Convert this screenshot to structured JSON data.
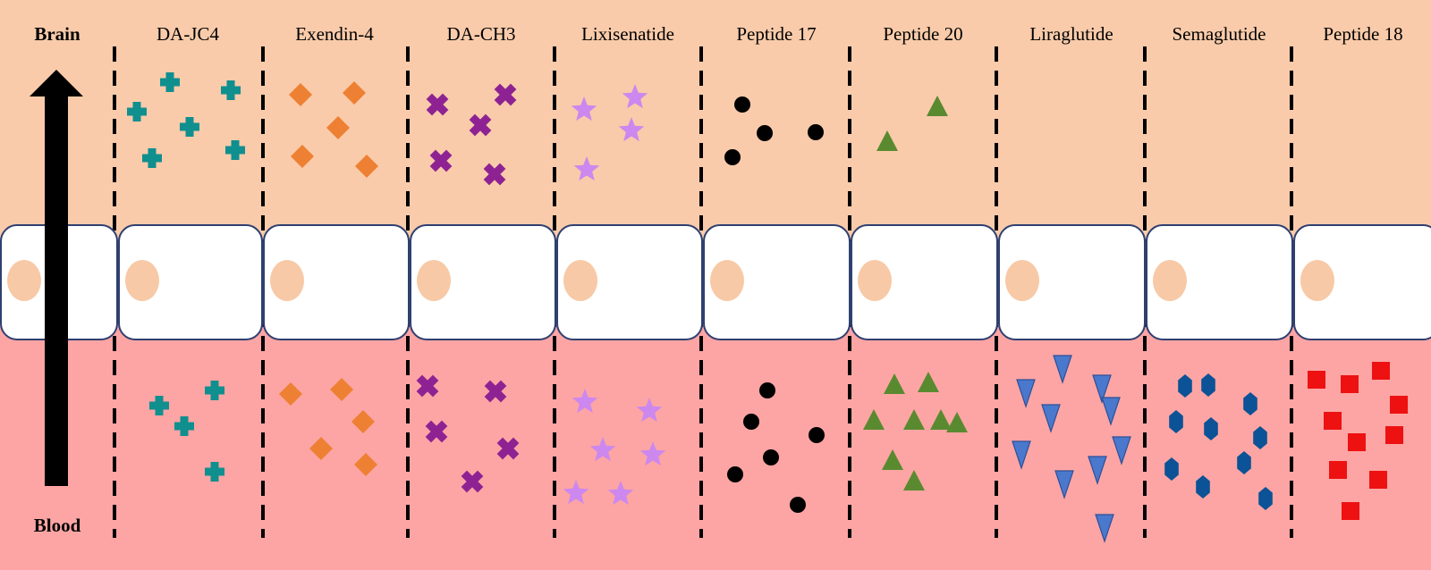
{
  "diagram": {
    "brain_label": "Brain",
    "blood_label": "Blood",
    "colors": {
      "brain_background": "#f9cbaa",
      "blood_background": "#fda5a4",
      "cell_fill": "#ffffff",
      "cell_border": "#2f4070",
      "nucleus": "#f7c9a6",
      "arrow": "#000000",
      "divider": "#000000"
    },
    "compounds": [
      {
        "name": "DA-JC4",
        "symbol": "plus",
        "color": "#108f8f",
        "brain_count": 6,
        "blood_count": 4
      },
      {
        "name": "Exendin-4",
        "symbol": "diamond",
        "color": "#ee8033",
        "brain_count": 5,
        "blood_count": 5
      },
      {
        "name": "DA-CH3",
        "symbol": "cross",
        "color": "#8e2293",
        "brain_count": 5,
        "blood_count": 5
      },
      {
        "name": "Lixisenatide",
        "symbol": "star",
        "color": "#cc88ee",
        "brain_count": 4,
        "blood_count": 6
      },
      {
        "name": "Peptide 17",
        "symbol": "circle",
        "color": "#000000",
        "brain_count": 4,
        "blood_count": 6
      },
      {
        "name": "Peptide 20",
        "symbol": "triangle-up",
        "color": "#5a8a30",
        "brain_count": 2,
        "blood_count": 8
      },
      {
        "name": "Liraglutide",
        "symbol": "triangle-down",
        "color": "#4a78cc",
        "brain_count": 0,
        "blood_count": 10
      },
      {
        "name": "Semaglutide",
        "symbol": "hexagon",
        "color": "#0c5296",
        "brain_count": 0,
        "blood_count": 10
      },
      {
        "name": "Peptide 18",
        "symbol": "square",
        "color": "#ee1111",
        "brain_count": 0,
        "blood_count": 10
      }
    ]
  }
}
